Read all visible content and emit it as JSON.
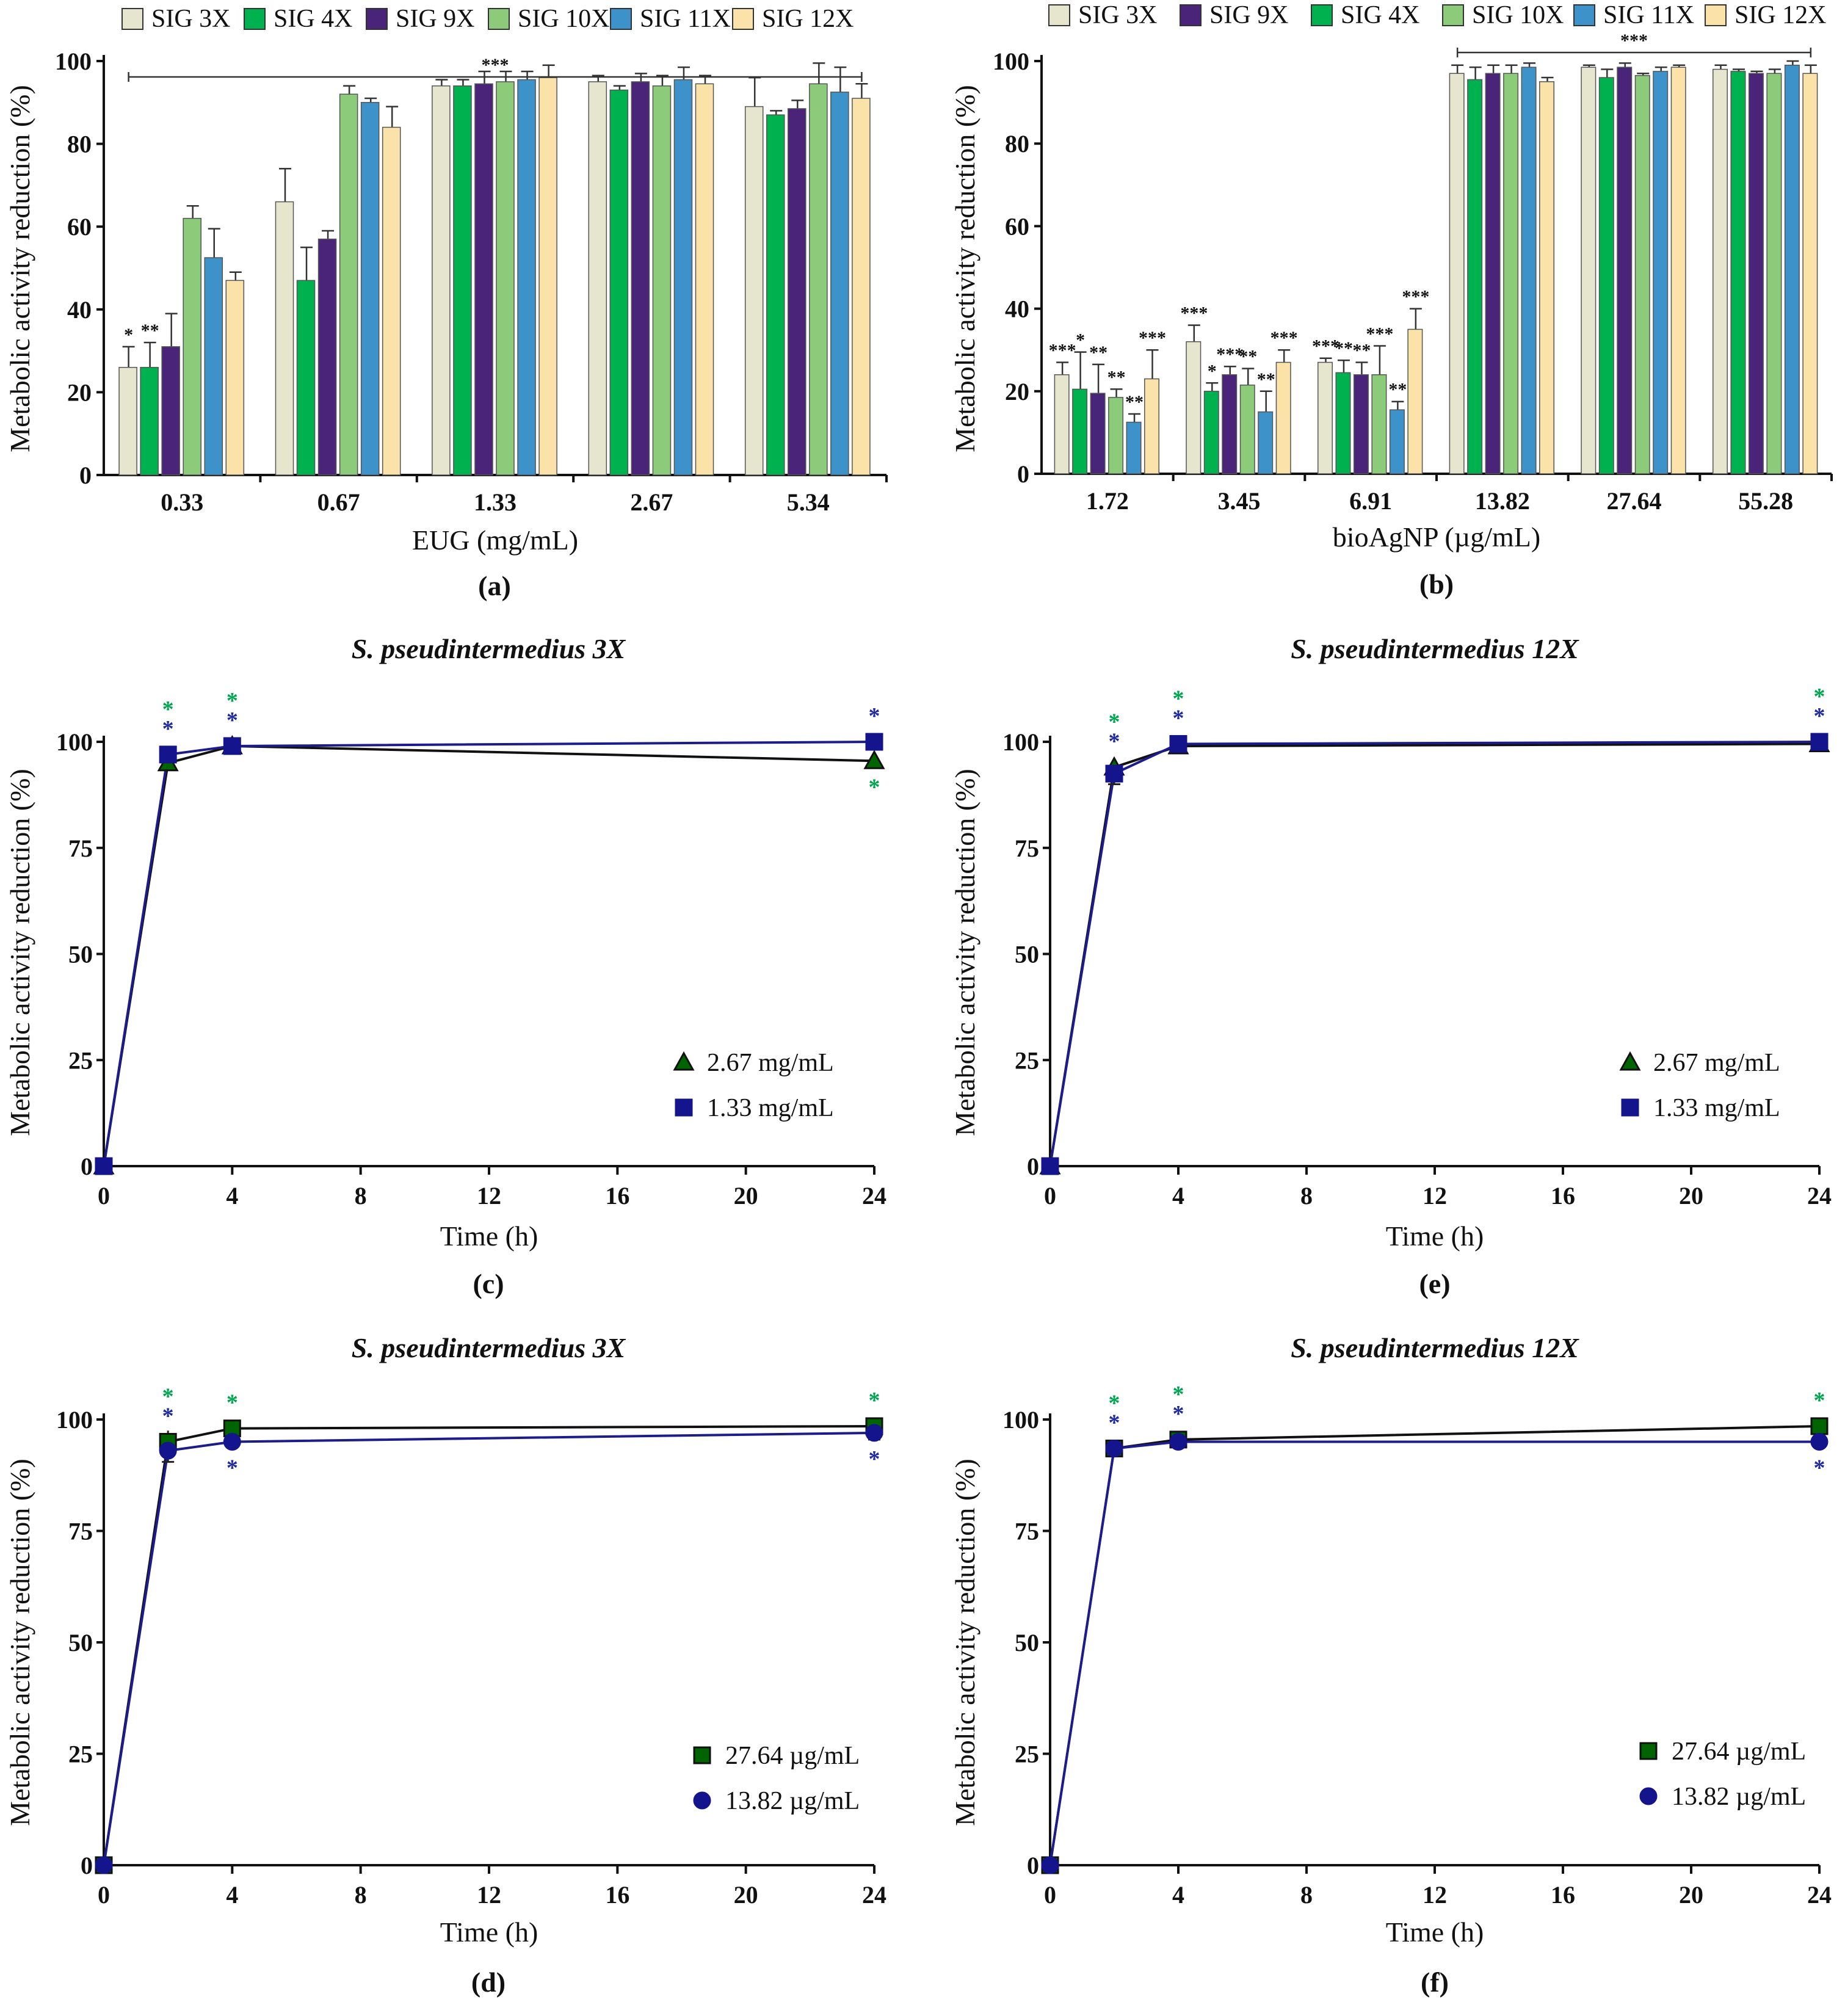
{
  "colors": {
    "SIG 3X": "#e6e6ce",
    "SIG 4X": "#00b14f",
    "SIG 9X": "#4a2478",
    "SIG 10X": "#8ccb7a",
    "SIG 11X": "#3d93c9",
    "SIG 12X": "#fae2a8",
    "green_star": "#00a550",
    "blue_star": "#1f2a9e",
    "line_black": "#111111",
    "line_blue": "#1c1c8a",
    "marker_green": "#006400",
    "marker_blue": "#14148c"
  },
  "chart_data": [
    {
      "id": "a",
      "type": "bar",
      "panel_label": "(a)",
      "xlabel": "EUG (mg/mL)",
      "ylabel": "Metabolic activity reduction (%)",
      "ylim": [
        0,
        100
      ],
      "yticks": [
        "0",
        "20",
        "40",
        "60",
        "80",
        "100"
      ],
      "categories": [
        "0.33",
        "0.67",
        "1.33",
        "2.67",
        "5.34"
      ],
      "series": [
        {
          "name": "SIG 3X",
          "values": [
            26,
            66,
            94,
            95,
            89
          ],
          "errors": [
            5,
            8,
            1.5,
            1.5,
            7
          ]
        },
        {
          "name": "SIG 4X",
          "values": [
            26,
            47,
            94,
            93,
            87
          ],
          "errors": [
            6,
            8,
            1.5,
            1,
            1
          ]
        },
        {
          "name": "SIG 9X",
          "values": [
            31,
            57,
            94.5,
            95,
            88.5
          ],
          "errors": [
            8,
            2,
            3,
            2,
            2
          ]
        },
        {
          "name": "SIG 10X",
          "values": [
            62,
            92,
            95,
            94,
            94.5
          ],
          "errors": [
            3,
            2,
            2.5,
            2.5,
            5
          ]
        },
        {
          "name": "SIG 11X",
          "values": [
            52.5,
            90,
            95.5,
            95.5,
            92.5
          ],
          "errors": [
            7,
            1,
            2,
            3,
            6
          ]
        },
        {
          "name": "SIG 12X",
          "values": [
            47,
            84,
            96,
            94.5,
            91
          ],
          "errors": [
            2,
            5,
            3,
            2,
            3.5
          ]
        }
      ],
      "significance": [
        {
          "category": "0.33",
          "series": "SIG 3X",
          "label": "*"
        },
        {
          "category": "0.33",
          "series": "SIG 4X",
          "label": "**"
        }
      ],
      "bracket": {
        "from": "0.33",
        "to": "5.34",
        "label": "***"
      }
    },
    {
      "id": "b",
      "type": "bar",
      "panel_label": "(b)",
      "xlabel": "bioAgNP (µg/mL)",
      "ylabel": "Metabolic activity reduction (%)",
      "ylim": [
        0,
        100
      ],
      "yticks": [
        "0",
        "20",
        "40",
        "60",
        "80",
        "100"
      ],
      "categories": [
        "1.72",
        "3.45",
        "6.91",
        "13.82",
        "27.64",
        "55.28"
      ],
      "series": [
        {
          "name": "SIG 3X",
          "values": [
            24,
            32,
            27,
            97,
            98.5,
            98
          ],
          "errors": [
            3,
            4,
            1,
            2,
            0.5,
            1
          ]
        },
        {
          "name": "SIG 4X",
          "values": [
            20.5,
            20,
            24.5,
            95.5,
            96,
            97.5
          ],
          "errors": [
            9,
            2,
            3,
            3,
            2,
            0.5
          ]
        },
        {
          "name": "SIG 9X",
          "values": [
            19.5,
            24,
            24,
            97,
            98.5,
            97
          ],
          "errors": [
            7,
            2,
            3,
            2,
            1,
            0.5
          ]
        },
        {
          "name": "SIG 10X",
          "values": [
            18.5,
            21.5,
            24,
            97,
            96.5,
            97
          ],
          "errors": [
            2,
            4,
            7,
            2,
            0.5,
            1
          ]
        },
        {
          "name": "SIG 11X",
          "values": [
            12.5,
            15,
            15.5,
            98.5,
            97.5,
            99
          ],
          "errors": [
            2,
            5,
            2,
            1,
            1,
            1
          ]
        },
        {
          "name": "SIG 12X",
          "values": [
            23,
            27,
            35,
            95,
            98.5,
            97
          ],
          "errors": [
            7,
            3,
            5,
            1,
            0.5,
            2
          ]
        }
      ],
      "significance_by_category": [
        [
          "***",
          "*",
          "**",
          "**",
          "**",
          "***"
        ],
        [
          "***",
          "*",
          "***",
          "**",
          "**",
          "***"
        ],
        [
          "***",
          "**",
          "**",
          "***",
          "**",
          "***"
        ]
      ],
      "bracket": {
        "from": "13.82",
        "to": "55.28",
        "label": "***"
      }
    },
    {
      "id": "c",
      "type": "line",
      "panel_label": "(c)",
      "title": "S. pseudintermedius 3X",
      "xlabel": "Time (h)",
      "ylabel": "Metabolic activity reduction (%)",
      "xlim": [
        0,
        24
      ],
      "ylim": [
        0,
        100
      ],
      "xticks": [
        "0",
        "4",
        "8",
        "12",
        "16",
        "20",
        "24"
      ],
      "yticks": [
        "0",
        "25",
        "50",
        "75",
        "100"
      ],
      "x": [
        0,
        2,
        4,
        24
      ],
      "series": [
        {
          "name": "2.67 mg/mL",
          "marker": "triangle",
          "values": [
            0,
            95,
            99,
            95.5
          ],
          "errors": [
            0,
            1,
            1,
            1
          ],
          "stars": [
            "",
            "above",
            "above",
            "below"
          ]
        },
        {
          "name": "1.33 mg/mL",
          "marker": "square",
          "values": [
            0,
            97,
            99,
            100
          ],
          "errors": [
            0,
            2,
            1,
            0
          ],
          "stars": [
            "",
            "above",
            "above",
            "above"
          ]
        }
      ]
    },
    {
      "id": "e",
      "type": "line",
      "panel_label": "(e)",
      "title": "S. pseudintermedius 12X",
      "xlabel": "Time (h)",
      "ylabel": "Metabolic activity reduction (%)",
      "xlim": [
        0,
        24
      ],
      "ylim": [
        0,
        100
      ],
      "xticks": [
        "0",
        "4",
        "8",
        "12",
        "16",
        "20",
        "24"
      ],
      "yticks": [
        "0",
        "25",
        "50",
        "75",
        "100"
      ],
      "x": [
        0,
        2,
        4,
        24
      ],
      "series": [
        {
          "name": "2.67 mg/mL",
          "marker": "triangle",
          "values": [
            0,
            94,
            99,
            99.5
          ],
          "errors": [
            0,
            2,
            1,
            1
          ],
          "stars": [
            "",
            "above",
            "above",
            "above"
          ]
        },
        {
          "name": "1.33 mg/mL",
          "marker": "square",
          "values": [
            0,
            92.5,
            99.5,
            100
          ],
          "errors": [
            0,
            2.5,
            1,
            0.5
          ],
          "stars": [
            "",
            "above",
            "above",
            "above"
          ]
        }
      ]
    },
    {
      "id": "d",
      "type": "line",
      "panel_label": "(d)",
      "title": "S. pseudintermedius 3X",
      "xlabel": "Time (h)",
      "ylabel": "Metabolic activity reduction (%)",
      "xlim": [
        0,
        24
      ],
      "ylim": [
        0,
        100
      ],
      "xticks": [
        "0",
        "4",
        "8",
        "12",
        "16",
        "20",
        "24"
      ],
      "yticks": [
        "0",
        "25",
        "50",
        "75",
        "100"
      ],
      "x": [
        0,
        2,
        4,
        24
      ],
      "series": [
        {
          "name": "27.64 µg/mL",
          "marker": "square",
          "values": [
            0,
            95,
            98,
            98.5
          ],
          "errors": [
            0,
            2.5,
            0.5,
            0.5
          ],
          "stars": [
            "",
            "above",
            "above",
            "above"
          ]
        },
        {
          "name": "13.82 µg/mL",
          "marker": "circle",
          "values": [
            0,
            93,
            95,
            97
          ],
          "errors": [
            0,
            2.5,
            0.5,
            1.5
          ],
          "stars": [
            "",
            "above",
            "below",
            "below"
          ]
        }
      ]
    },
    {
      "id": "f",
      "type": "line",
      "panel_label": "(f)",
      "title": "S. pseudintermedius 12X",
      "xlabel": "Time (h)",
      "ylabel": "Metabolic activity reduction (%)",
      "xlim": [
        0,
        24
      ],
      "ylim": [
        0,
        100
      ],
      "xticks": [
        "0",
        "4",
        "8",
        "12",
        "16",
        "20",
        "24"
      ],
      "yticks": [
        "0",
        "25",
        "50",
        "75",
        "100"
      ],
      "x": [
        0,
        2,
        4,
        24
      ],
      "series": [
        {
          "name": "27.64 µg/mL",
          "marker": "square",
          "values": [
            0,
            93.5,
            95.5,
            98.5
          ],
          "errors": [
            0,
            1,
            0.5,
            0.5
          ],
          "stars": [
            "",
            "above",
            "above",
            "above"
          ]
        },
        {
          "name": "13.82 µg/mL",
          "marker": "circle",
          "values": [
            0,
            93.5,
            95,
            95
          ],
          "errors": [
            0,
            1,
            0.5,
            0.5
          ],
          "stars": [
            "",
            "above",
            "above",
            "below"
          ]
        }
      ]
    }
  ]
}
